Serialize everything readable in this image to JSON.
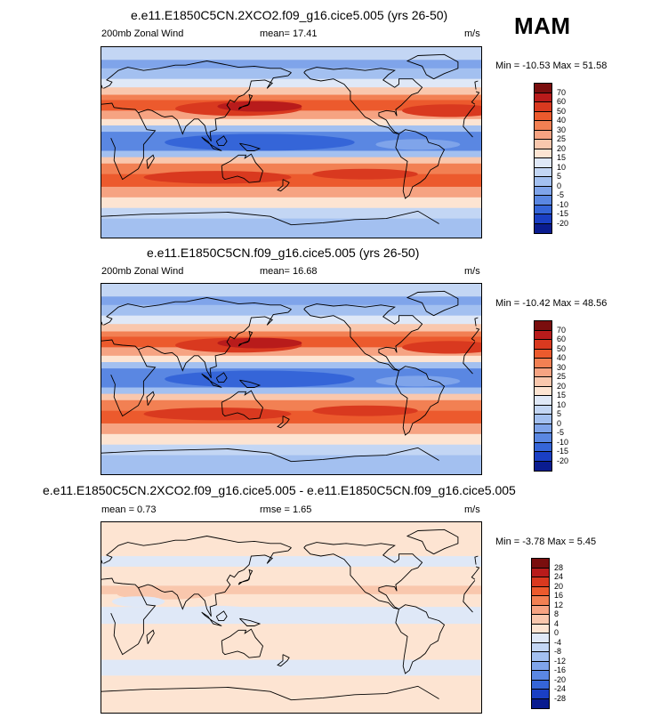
{
  "season": "MAM",
  "panels": [
    {
      "title": "e.e11.E1850C5CN.2XCO2.f09_g16.cice5.005 (yrs 26-50)",
      "left_label": "200mb Zonal Wind",
      "mid_label": "mean=  17.41",
      "units": "m/s",
      "minmax": "Min = -10.53 Max =  51.58",
      "colorbar": {
        "labels": [
          "70",
          "60",
          "50",
          "40",
          "30",
          "25",
          "20",
          "15",
          "10",
          "5",
          "0",
          "-5",
          "-10",
          "-15",
          "-20"
        ],
        "colors": [
          "#7a0e0e",
          "#b81b1b",
          "#d9391f",
          "#ec5a2d",
          "#f28053",
          "#f6a382",
          "#f9c7ad",
          "#fde4d2",
          "#dfe8f7",
          "#c3d6f4",
          "#a3c0f0",
          "#7fa4ea",
          "#5a87e2",
          "#3565d8",
          "#1a3fc4",
          "#0a1c8f"
        ]
      },
      "map": {
        "description_key": "base",
        "bands": [
          {
            "lat_top": 90,
            "lat_bot": 78,
            "color": "#c3d6f4"
          },
          {
            "lat_top": 78,
            "lat_bot": 70,
            "color": "#7fa4ea"
          },
          {
            "lat_top": 70,
            "lat_bot": 60,
            "color": "#a3c0f0"
          },
          {
            "lat_top": 60,
            "lat_bot": 52,
            "color": "#dfe8f7"
          },
          {
            "lat_top": 52,
            "lat_bot": 45,
            "color": "#f9c7ad"
          },
          {
            "lat_top": 45,
            "lat_bot": 40,
            "color": "#f28053"
          },
          {
            "lat_top": 40,
            "lat_bot": 30,
            "color": "#ec5a2d"
          },
          {
            "lat_top": 30,
            "lat_bot": 22,
            "color": "#f6a382"
          },
          {
            "lat_top": 22,
            "lat_bot": 16,
            "color": "#fde4d2"
          },
          {
            "lat_top": 16,
            "lat_bot": 10,
            "color": "#a3c0f0"
          },
          {
            "lat_top": 10,
            "lat_bot": -8,
            "color": "#5a87e2"
          },
          {
            "lat_top": -8,
            "lat_bot": -14,
            "color": "#a3c0f0"
          },
          {
            "lat_top": -14,
            "lat_bot": -20,
            "color": "#f9c7ad"
          },
          {
            "lat_top": -20,
            "lat_bot": -30,
            "color": "#f28053"
          },
          {
            "lat_top": -30,
            "lat_bot": -42,
            "color": "#ec5a2d"
          },
          {
            "lat_top": -42,
            "lat_bot": -52,
            "color": "#f6a382"
          },
          {
            "lat_top": -52,
            "lat_bot": -62,
            "color": "#fde4d2"
          },
          {
            "lat_top": -62,
            "lat_bot": -72,
            "color": "#c3d6f4"
          },
          {
            "lat_top": -72,
            "lat_bot": -90,
            "color": "#a3c0f0"
          }
        ]
      }
    },
    {
      "title": "e.e11.E1850C5CN.f09_g16.cice5.005 (yrs 26-50)",
      "left_label": "200mb Zonal Wind",
      "mid_label": "mean=  16.68",
      "units": "m/s",
      "minmax": "Min = -10.42 Max =  48.56",
      "colorbar": {
        "labels": [
          "70",
          "60",
          "50",
          "40",
          "30",
          "25",
          "20",
          "15",
          "10",
          "5",
          "0",
          "-5",
          "-10",
          "-15",
          "-20"
        ],
        "colors": [
          "#7a0e0e",
          "#b81b1b",
          "#d9391f",
          "#ec5a2d",
          "#f28053",
          "#f6a382",
          "#f9c7ad",
          "#fde4d2",
          "#dfe8f7",
          "#c3d6f4",
          "#a3c0f0",
          "#7fa4ea",
          "#5a87e2",
          "#3565d8",
          "#1a3fc4",
          "#0a1c8f"
        ]
      },
      "map": {
        "description_key": "base",
        "bands": [
          {
            "lat_top": 90,
            "lat_bot": 78,
            "color": "#c3d6f4"
          },
          {
            "lat_top": 78,
            "lat_bot": 70,
            "color": "#7fa4ea"
          },
          {
            "lat_top": 70,
            "lat_bot": 60,
            "color": "#a3c0f0"
          },
          {
            "lat_top": 60,
            "lat_bot": 52,
            "color": "#dfe8f7"
          },
          {
            "lat_top": 52,
            "lat_bot": 45,
            "color": "#f9c7ad"
          },
          {
            "lat_top": 45,
            "lat_bot": 40,
            "color": "#f28053"
          },
          {
            "lat_top": 40,
            "lat_bot": 30,
            "color": "#ec5a2d"
          },
          {
            "lat_top": 30,
            "lat_bot": 22,
            "color": "#f6a382"
          },
          {
            "lat_top": 22,
            "lat_bot": 16,
            "color": "#fde4d2"
          },
          {
            "lat_top": 16,
            "lat_bot": 10,
            "color": "#a3c0f0"
          },
          {
            "lat_top": 10,
            "lat_bot": -8,
            "color": "#5a87e2"
          },
          {
            "lat_top": -8,
            "lat_bot": -14,
            "color": "#a3c0f0"
          },
          {
            "lat_top": -14,
            "lat_bot": -20,
            "color": "#f9c7ad"
          },
          {
            "lat_top": -20,
            "lat_bot": -30,
            "color": "#f28053"
          },
          {
            "lat_top": -30,
            "lat_bot": -42,
            "color": "#ec5a2d"
          },
          {
            "lat_top": -42,
            "lat_bot": -52,
            "color": "#f6a382"
          },
          {
            "lat_top": -52,
            "lat_bot": -62,
            "color": "#fde4d2"
          },
          {
            "lat_top": -62,
            "lat_bot": -72,
            "color": "#c3d6f4"
          },
          {
            "lat_top": -72,
            "lat_bot": -90,
            "color": "#a3c0f0"
          }
        ]
      }
    },
    {
      "title": "e.e11.E1850C5CN.2XCO2.f09_g16.cice5.005 - e.e11.E1850C5CN.f09_g16.cice5.005",
      "left_label": "mean =  0.73",
      "mid_label": "rmse =  1.65",
      "units": "m/s",
      "minmax": "Min =  -3.78 Max =  5.45",
      "colorbar": {
        "labels": [
          "28",
          "24",
          "20",
          "16",
          "12",
          "8",
          "4",
          "0",
          "-4",
          "-8",
          "-12",
          "-16",
          "-20",
          "-24",
          "-28"
        ],
        "colors": [
          "#7a0e0e",
          "#b81b1b",
          "#d9391f",
          "#ec5a2d",
          "#f28053",
          "#f6a382",
          "#f9c7ad",
          "#fde4d2",
          "#dfe8f7",
          "#c3d6f4",
          "#a3c0f0",
          "#7fa4ea",
          "#5a87e2",
          "#3565d8",
          "#1a3fc4",
          "#0a1c8f"
        ]
      },
      "map": {
        "description_key": "diff",
        "bands": [
          {
            "lat_top": 90,
            "lat_bot": 70,
            "color": "#fde4d2"
          },
          {
            "lat_top": 70,
            "lat_bot": 58,
            "color": "#fde4d2"
          },
          {
            "lat_top": 58,
            "lat_bot": 48,
            "color": "#dfe8f7"
          },
          {
            "lat_top": 48,
            "lat_bot": 30,
            "color": "#fde4d2"
          },
          {
            "lat_top": 30,
            "lat_bot": 22,
            "color": "#f9c7ad"
          },
          {
            "lat_top": 22,
            "lat_bot": 10,
            "color": "#fde4d2"
          },
          {
            "lat_top": 10,
            "lat_bot": -6,
            "color": "#dfe8f7"
          },
          {
            "lat_top": -6,
            "lat_bot": -40,
            "color": "#fde4d2"
          },
          {
            "lat_top": -40,
            "lat_bot": -55,
            "color": "#dfe8f7"
          },
          {
            "lat_top": -55,
            "lat_bot": -90,
            "color": "#fde4d2"
          }
        ]
      }
    }
  ]
}
